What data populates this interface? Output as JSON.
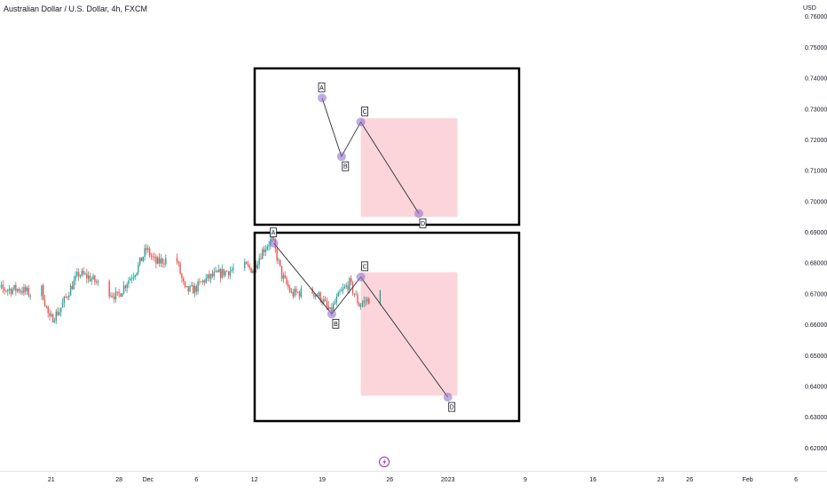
{
  "header": {
    "symbol_title": "Australian Dollar / U.S. Dollar, 4h, FXCM"
  },
  "colors": {
    "up": "#26a69a",
    "down": "#ef5350",
    "target_zone": "#fcd5da",
    "pattern_point": "#9575cd",
    "frame": "#000000",
    "pattern_line": "#2a2e39"
  },
  "chart_data": {
    "type": "candlestick",
    "title": "Australian Dollar / U.S. Dollar, 4h, FXCM",
    "y_unit": "USD",
    "y_ticks": [
      "0.76000",
      "0.75000",
      "0.74000",
      "0.73000",
      "0.72000",
      "0.71000",
      "0.70000",
      "0.69000",
      "0.68000",
      "0.67000",
      "0.66000",
      "0.65000",
      "0.64000",
      "0.63000",
      "0.62000"
    ],
    "x_ticks": [
      "21",
      "28",
      "Dec",
      "6",
      "12",
      "19",
      "26",
      "2023",
      "9",
      "16",
      "23",
      "26",
      "Feb",
      "6"
    ],
    "ylim": [
      0.6178,
      0.7625
    ],
    "grid": false,
    "price_path": [
      [
        "2022-11-18",
        0.6715
      ],
      [
        "2022-11-19",
        0.67
      ],
      [
        "2022-11-20",
        0.6735
      ],
      [
        "2022-11-21",
        0.6615
      ],
      [
        "2022-11-22",
        0.6645
      ],
      [
        "2022-11-23",
        0.671
      ],
      [
        "2022-11-24",
        0.6765
      ],
      [
        "2022-11-25",
        0.6755
      ],
      [
        "2022-11-28",
        0.669
      ],
      [
        "2022-11-29",
        0.674
      ],
      [
        "2022-11-30",
        0.678
      ],
      [
        "2022-12-01",
        0.6845
      ],
      [
        "2022-12-02",
        0.68
      ],
      [
        "2022-12-04",
        0.6825
      ],
      [
        "2022-12-05",
        0.671
      ],
      [
        "2022-12-06",
        0.6715
      ],
      [
        "2022-12-07",
        0.6745
      ],
      [
        "2022-12-08",
        0.676
      ],
      [
        "2022-12-09",
        0.677
      ],
      [
        "2022-12-11",
        0.679
      ],
      [
        "2022-12-12",
        0.678
      ],
      [
        "2022-12-13",
        0.684
      ],
      [
        "2022-12-14",
        0.688
      ],
      [
        "2022-12-15",
        0.676
      ],
      [
        "2022-12-16",
        0.67
      ],
      [
        "2022-12-18",
        0.671
      ],
      [
        "2022-12-19",
        0.669
      ],
      [
        "2022-12-20",
        0.664
      ],
      [
        "2022-12-21",
        0.67
      ],
      [
        "2022-12-22",
        0.6735
      ],
      [
        "2022-12-23",
        0.6665
      ],
      [
        "2022-12-25",
        0.67
      ]
    ],
    "patterns": [
      {
        "points": [
          {
            "label": "A",
            "date": "2022-12-19",
            "price": 0.7336
          },
          {
            "label": "B",
            "date": "2022-12-21",
            "price": 0.7146
          },
          {
            "label": "C",
            "date": "2022-12-23",
            "price": 0.7258
          },
          {
            "label": "D",
            "date": "2022-12-29",
            "price": 0.6961
          }
        ],
        "target_zone": {
          "from": "2022-12-23",
          "to": "2023-01-02",
          "high": 0.727,
          "low": 0.695
        }
      },
      {
        "points": [
          {
            "label": "A",
            "date": "2022-12-14",
            "price": 0.6865
          },
          {
            "label": "B",
            "date": "2022-12-20",
            "price": 0.6635
          },
          {
            "label": "C",
            "date": "2022-12-23",
            "price": 0.6755
          },
          {
            "label": "D",
            "date": "2023-01-01",
            "price": 0.6365
          }
        ],
        "target_zone": {
          "from": "2022-12-23",
          "to": "2023-01-02",
          "high": 0.677,
          "low": 0.637
        }
      }
    ]
  }
}
